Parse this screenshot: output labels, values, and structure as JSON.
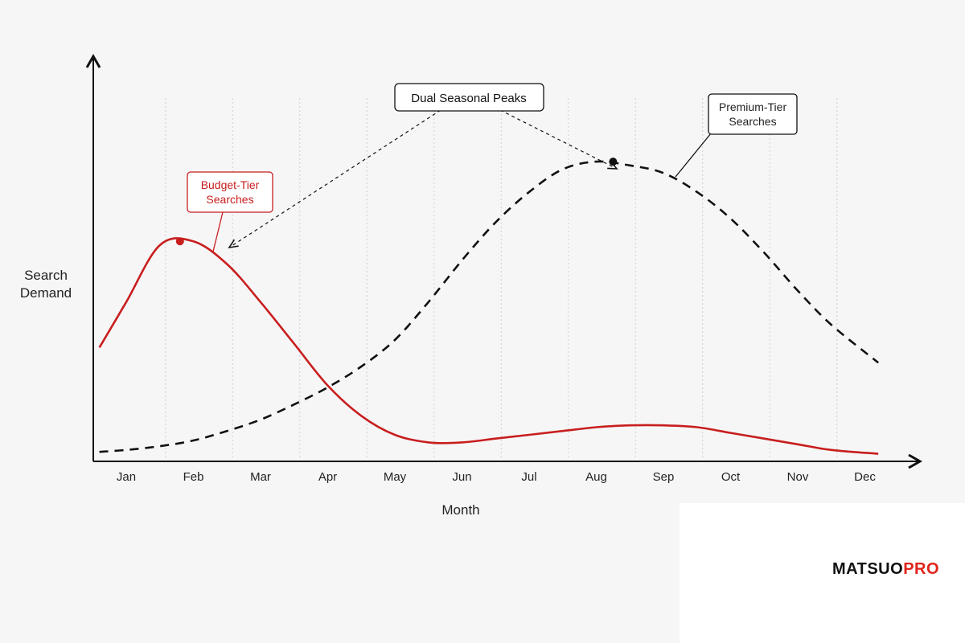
{
  "chart_data": {
    "type": "line",
    "title": "",
    "xlabel": "Month",
    "ylabel": "Search Demand",
    "categories": [
      "Jan",
      "Feb",
      "Mar",
      "Apr",
      "May",
      "Jun",
      "Jul",
      "Aug",
      "Sep",
      "Oct",
      "Nov",
      "Dec"
    ],
    "ylim": [
      0,
      100
    ],
    "grid": "vertical-dotted",
    "series": [
      {
        "name": "Budget-Tier Searches",
        "color": "#c81e1e",
        "style": "solid",
        "x": [
          0.6,
          1.0,
          1.5,
          2.0,
          2.5,
          3.0,
          3.5,
          4.0,
          4.5,
          5.0,
          5.5,
          6.0,
          6.5,
          7.0,
          7.5,
          8.0,
          8.5,
          9.0,
          9.5,
          10.0,
          10.5,
          11.0,
          11.5,
          12.2
        ],
        "values": [
          30,
          42,
          57,
          58,
          52,
          42,
          31,
          20,
          12,
          7,
          5,
          5,
          6,
          7,
          8,
          9,
          9.5,
          9.5,
          9,
          7.5,
          6,
          4.5,
          3,
          2
        ]
      },
      {
        "name": "Premium-Tier Searches",
        "color": "#111111",
        "style": "dashed",
        "x": [
          0.6,
          1.0,
          1.5,
          2.0,
          2.5,
          3.0,
          3.5,
          4.0,
          4.5,
          5.0,
          5.5,
          6.0,
          6.5,
          7.0,
          7.5,
          8.0,
          8.5,
          9.0,
          9.5,
          10.0,
          10.5,
          11.0,
          11.5,
          12.2
        ],
        "values": [
          2.5,
          3,
          4,
          5.5,
          8,
          11,
          15,
          19.5,
          25,
          32,
          42,
          53,
          63,
          71,
          77,
          79,
          78,
          76,
          71,
          64,
          55,
          45,
          36,
          26
        ]
      }
    ],
    "annotations": [
      {
        "label": "Dual Seasonal Peaks",
        "targets": [
          {
            "series": 0,
            "x": 2.0
          },
          {
            "series": 1,
            "x": 8.0
          }
        ]
      }
    ],
    "peak_markers": [
      {
        "series": 0,
        "x": 1.8,
        "value": 58
      },
      {
        "series": 1,
        "x": 8.25,
        "value": 79
      }
    ]
  },
  "callouts": {
    "budget": [
      "Budget-Tier",
      "Searches"
    ],
    "premium": [
      "Premium-Tier",
      "Searches"
    ],
    "peaks": "Dual Seasonal Peaks"
  },
  "axis": {
    "y_title": [
      "Search",
      "Demand"
    ],
    "x_title": "Month"
  },
  "brand": {
    "part1": "MATSUO",
    "part2": "PRO",
    "color_main": "#111111",
    "color_accent": "#e0241b"
  }
}
